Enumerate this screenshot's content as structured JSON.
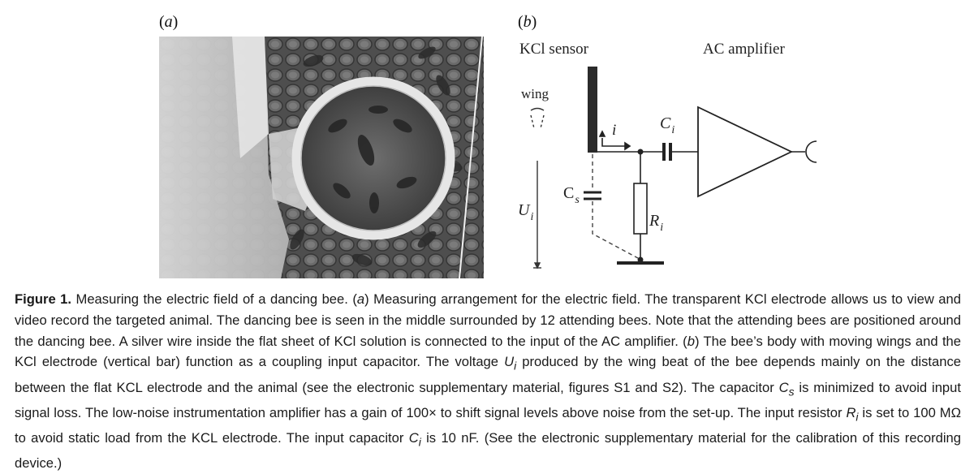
{
  "panel_a": {
    "label": "a"
  },
  "panel_b": {
    "label": "b",
    "sensor_label": "KCl sensor",
    "amplifier_label": "AC amplifier",
    "wing_label": "wing",
    "current_label": "i",
    "capacitor_in_label": "C",
    "capacitor_in_sub": "i",
    "capacitor_s_label": "C",
    "capacitor_s_sub": "s",
    "resistor_label": "R",
    "resistor_sub": "i",
    "voltage_label": "U",
    "voltage_sub": "i"
  },
  "caption": {
    "lead": "Figure 1.",
    "s1": " Measuring the electric field of a dancing bee. (",
    "a": "a",
    "s2": ") Measuring arrangement for the electric field. The transparent KCl electrode allows us to view and video record the targeted animal. The dancing bee is seen in the middle surrounded by 12 attending bees. Note that the attending bees are positioned around the dancing bee. A silver wire inside the flat sheet of KCl solution is connected to the input of the AC amplifier. (",
    "b": "b",
    "s3": ") The bee’s body with moving wings and the KCl electrode (vertical bar) function as a coupling input capacitor. The voltage ",
    "u": "U",
    "u_sub": "i",
    "s4": " produced by the wing beat of the bee depends mainly on the distance between the flat KCL electrode and the animal (see the electronic supplementary material, figures S1 and S2). The capacitor ",
    "c": "C",
    "c_sub": "s",
    "s5": " is minimized to avoid input signal loss. The low-noise instrumentation amplifier has a gain of 100× to shift signal levels above noise from the set-up. The input resistor ",
    "r": "R",
    "r_sub": "i",
    "s6": " is set to 100 MΩ to avoid static load from the KCL electrode. The input capacitor ",
    "ci": "C",
    "ci_sub": "i",
    "s7": " is 10 nF. (See the electronic supplementary material for the calibration of this recording device.)"
  }
}
